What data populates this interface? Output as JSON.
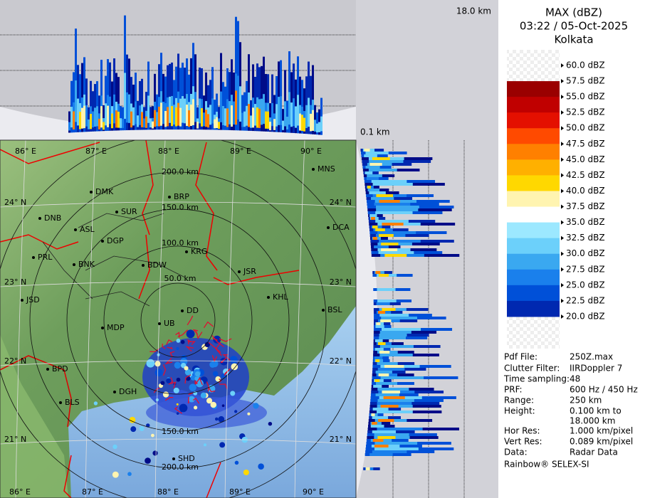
{
  "header": {
    "product": "MAX (dBZ)",
    "datetime": "03:22 / 05-Oct-2025",
    "station": "Kolkata"
  },
  "heights": {
    "top": "18.0 km",
    "bottom": "0.1 km"
  },
  "legend": {
    "labels": [
      "60.0 dBZ",
      "57.5 dBZ",
      "55.0 dBZ",
      "52.5 dBZ",
      "50.0 dBZ",
      "47.5 dBZ",
      "45.0 dBZ",
      "42.5 dBZ",
      "40.0 dBZ",
      "37.5 dBZ",
      "35.0 dBZ",
      "32.5 dBZ",
      "30.0 dBZ",
      "27.5 dBZ",
      "25.0 dBZ",
      "22.5 dBZ",
      "20.0 dBZ"
    ],
    "colors": [
      "#ffffff",
      "#9a0000",
      "#c00000",
      "#e41000",
      "#ff4a00",
      "#ff8000",
      "#ffb000",
      "#ffd800",
      "#fff4b0",
      "#ffffff",
      "#9ce8ff",
      "#6cd0fa",
      "#3aa8f0",
      "#1a80ec",
      "#0050d8",
      "#0028b0",
      "#000c88"
    ]
  },
  "info": [
    {
      "label": "Pdf File:",
      "value": "250Z.max"
    },
    {
      "label": "Clutter Filter:",
      "value": "IIRDoppler 7"
    },
    {
      "label": "Time sampling:",
      "value": "48"
    },
    {
      "label": "PRF:",
      "value": "600 Hz / 450 Hz"
    },
    {
      "label": "Range:",
      "value": "250 km"
    },
    {
      "label": "Height:",
      "value": "0.100 km to",
      "value2": "18.000 km"
    },
    {
      "label": "Hor Res:",
      "value": "1.000 km/pixel"
    },
    {
      "label": "Vert Res:",
      "value": "0.089 km/pixel"
    },
    {
      "label": "Data:",
      "value": "Radar Data"
    }
  ],
  "footer": "Rainbow® SELEX-SI",
  "map": {
    "lon_top": [
      "86° E",
      "87° E",
      "88° E",
      "89° E",
      "90° E"
    ],
    "lon_bottom": [
      "86° E",
      "87° E",
      "88° E",
      "89° E",
      "90° E"
    ],
    "lat_left": [
      "24° N",
      "23° N",
      "22° N",
      "21° N"
    ],
    "lat_right": [
      "24° N",
      "23° N",
      "22° N",
      "21° N"
    ],
    "rings_north": [
      "50.0 km",
      "100.0 km",
      "150.0 km",
      "200.0 km"
    ],
    "rings_south": [
      "150.0 km",
      "200.0 km"
    ],
    "cities": [
      "MNS",
      "DMK",
      "BRP",
      "SUR",
      "DNB",
      "ASL",
      "DGP",
      "DCA",
      "KRG",
      "PRL",
      "BNK",
      "BDW",
      "JSR",
      "KHL",
      "JSD",
      "BSL",
      "DD",
      "UB",
      "MDP",
      "BPD",
      "DGH",
      "BLS",
      "SHD"
    ]
  }
}
